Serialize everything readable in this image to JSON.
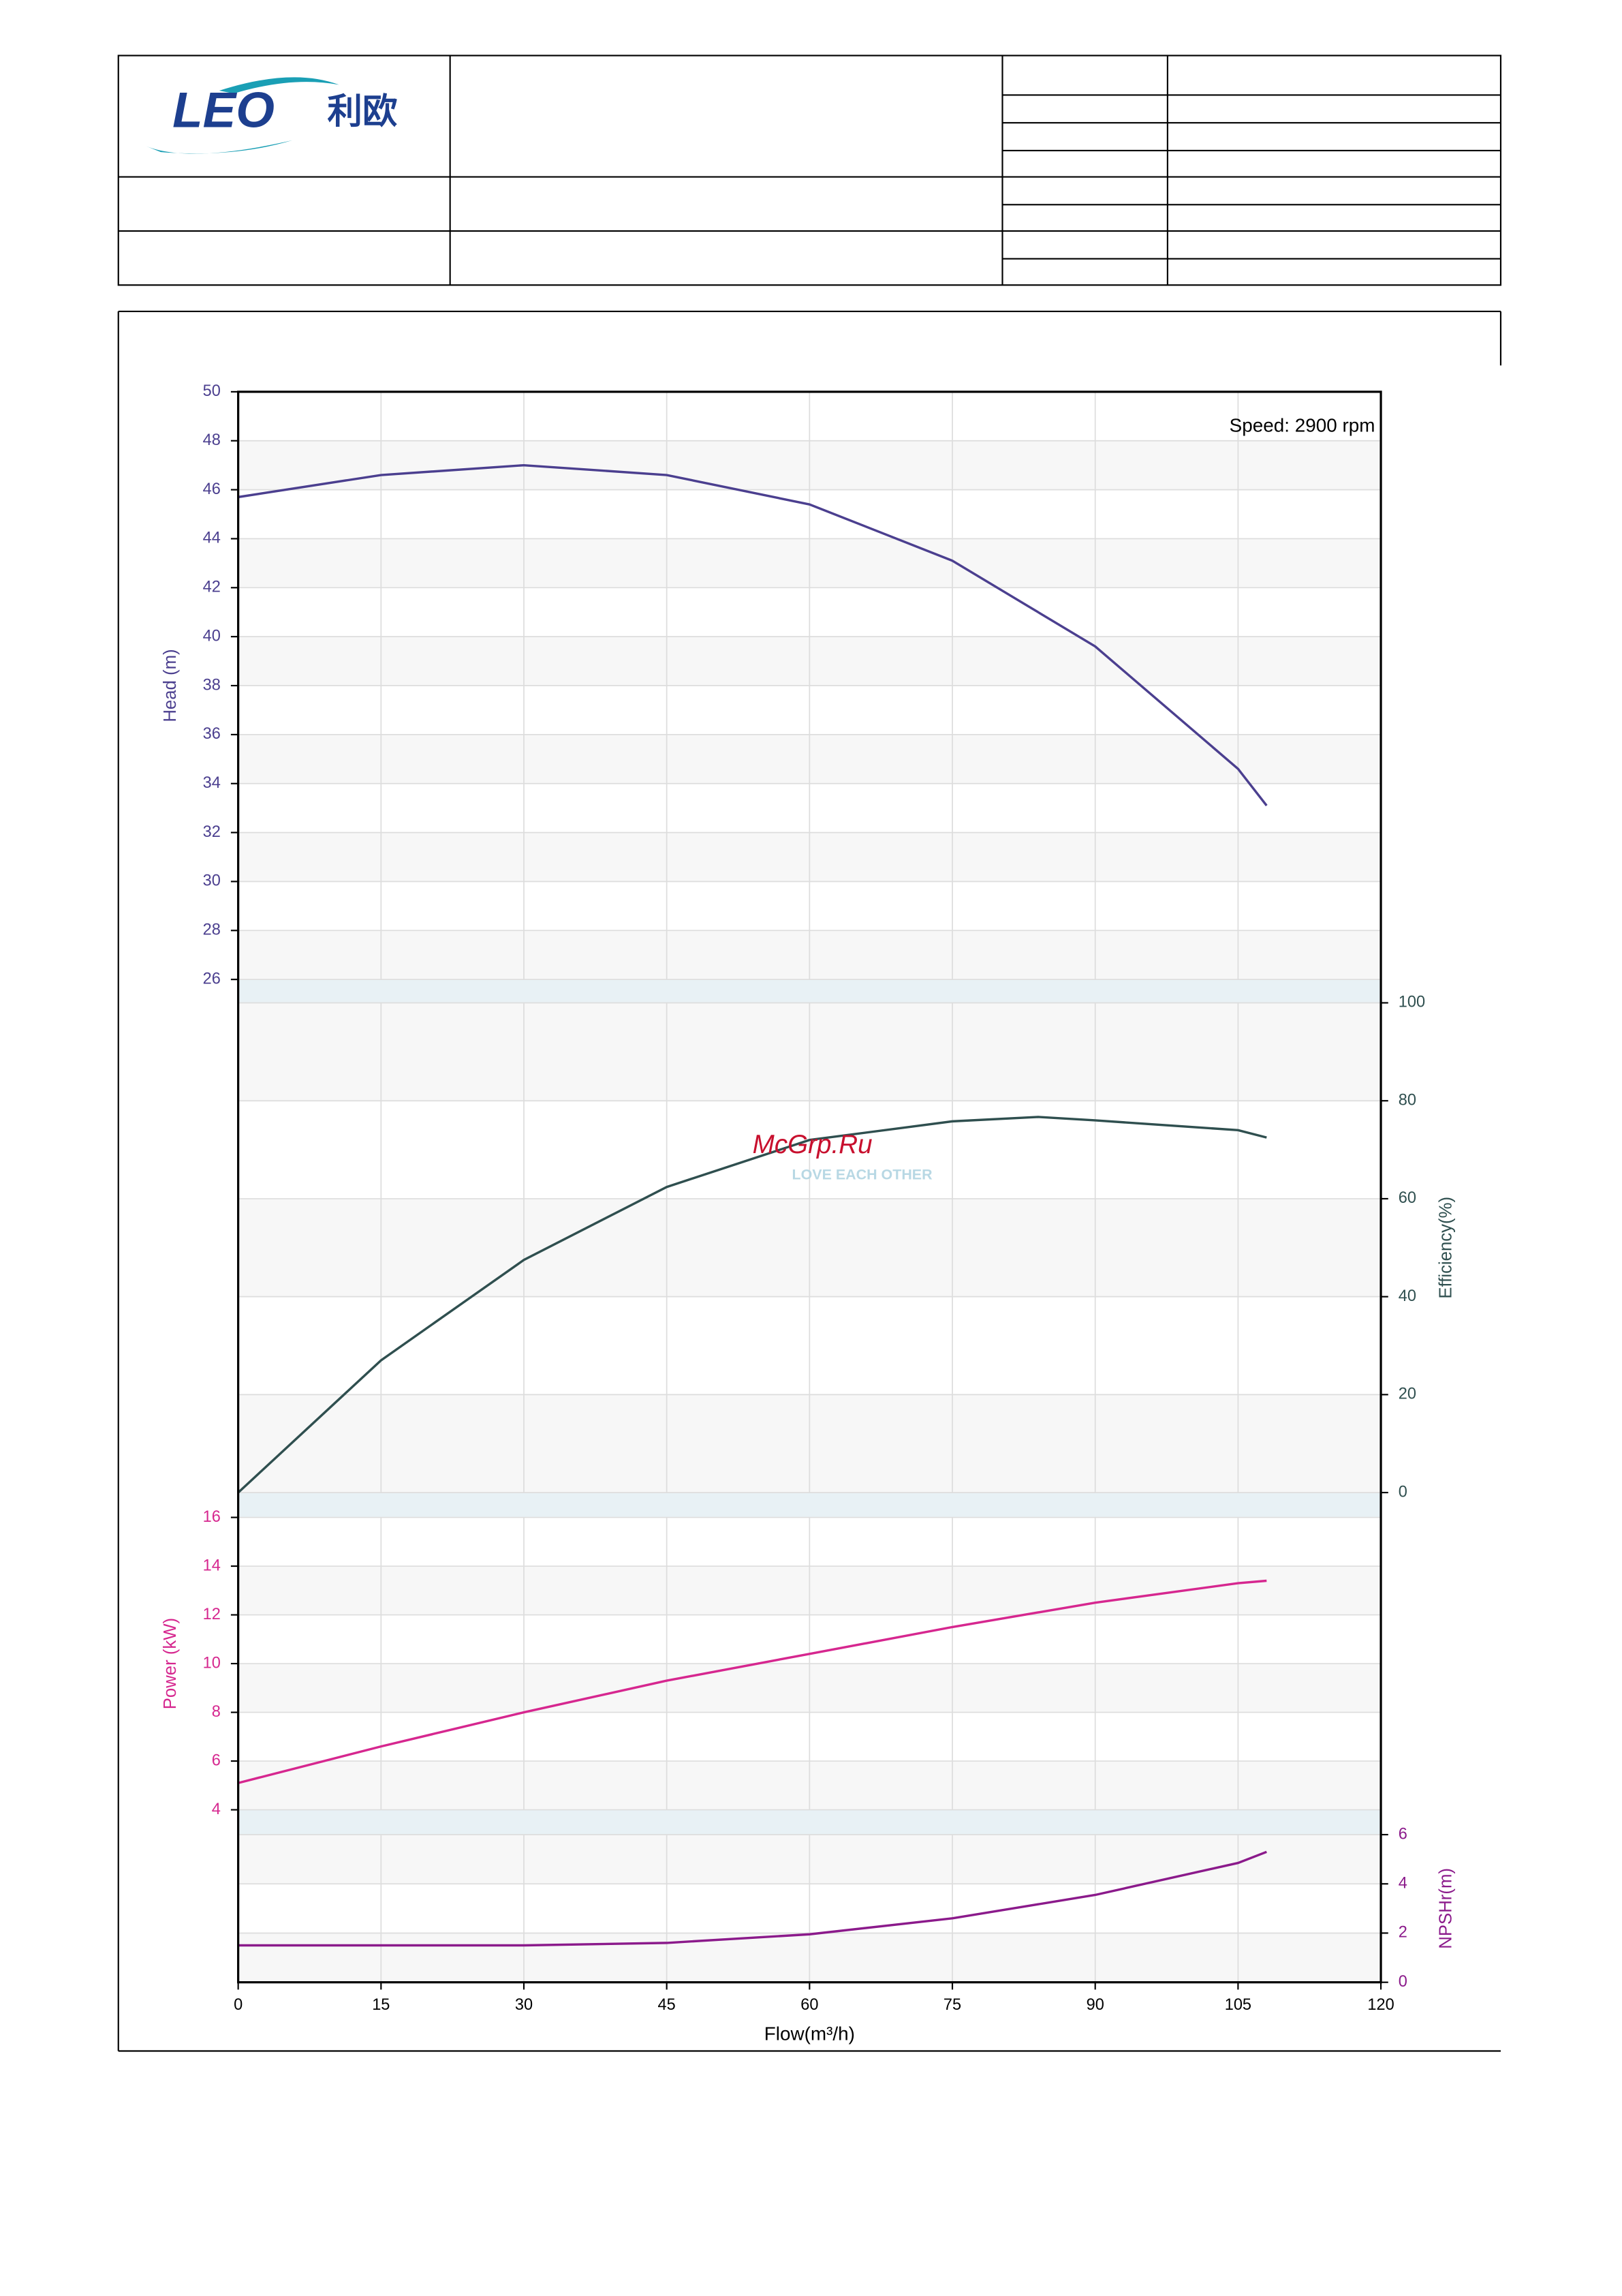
{
  "header": {
    "logo_text": "LEO",
    "logo_cn": "利欧"
  },
  "watermark": {
    "text": "McGrp.Ru",
    "sub": "LOVE EACH OTHER"
  },
  "chart_data": [
    {
      "type": "line",
      "y_label": "Head (m)",
      "axis_side": "left",
      "annotation": "Speed: 2900 rpm",
      "xlim": [
        0,
        120
      ],
      "ylim": [
        26,
        50
      ],
      "yticks": [
        26,
        28,
        30,
        32,
        34,
        36,
        38,
        40,
        42,
        44,
        46,
        48,
        50
      ],
      "grid": true,
      "series": [
        {
          "color": "#4b3f8f",
          "x": [
            0,
            15,
            30,
            45,
            60,
            75,
            90,
            105,
            108
          ],
          "values": [
            45.7,
            46.6,
            47.0,
            46.6,
            45.4,
            43.1,
            39.6,
            34.6,
            33.1
          ]
        }
      ]
    },
    {
      "type": "line",
      "y_label": "Efficiency(%)",
      "axis_side": "right",
      "xlim": [
        0,
        120
      ],
      "ylim": [
        0,
        100
      ],
      "yticks": [
        0,
        20,
        40,
        60,
        80,
        100
      ],
      "grid": true,
      "series": [
        {
          "color": "#2f4f4f",
          "x": [
            0,
            15,
            30,
            45,
            60,
            75,
            84,
            90,
            105,
            108
          ],
          "values": [
            0,
            27,
            47.5,
            62.4,
            72,
            75.8,
            76.7,
            76,
            74,
            72.5
          ]
        }
      ]
    },
    {
      "type": "line",
      "y_label": "Power (kW)",
      "axis_side": "left",
      "xlim": [
        0,
        120
      ],
      "ylim": [
        4,
        16
      ],
      "yticks": [
        4,
        6,
        8,
        10,
        12,
        14,
        16
      ],
      "grid": true,
      "series": [
        {
          "color": "#d6278f",
          "x": [
            0,
            15,
            30,
            45,
            60,
            75,
            90,
            105,
            108
          ],
          "values": [
            5.1,
            6.6,
            8.0,
            9.3,
            10.4,
            11.5,
            12.5,
            13.3,
            13.4
          ]
        }
      ]
    },
    {
      "type": "line",
      "y_label": "NPSHr(m)",
      "axis_side": "right",
      "x_label": "Flow(m³/h)",
      "xlim": [
        0,
        120
      ],
      "xticks": [
        0,
        15,
        30,
        45,
        60,
        75,
        90,
        105,
        120
      ],
      "ylim": [
        0,
        6
      ],
      "yticks": [
        0,
        2,
        4,
        6
      ],
      "grid": true,
      "series": [
        {
          "color": "#8b1a8b",
          "x": [
            0,
            15,
            30,
            45,
            60,
            75,
            90,
            105,
            108
          ],
          "values": [
            1.5,
            1.5,
            1.5,
            1.6,
            1.95,
            2.6,
            3.55,
            4.85,
            5.3
          ]
        }
      ]
    }
  ]
}
